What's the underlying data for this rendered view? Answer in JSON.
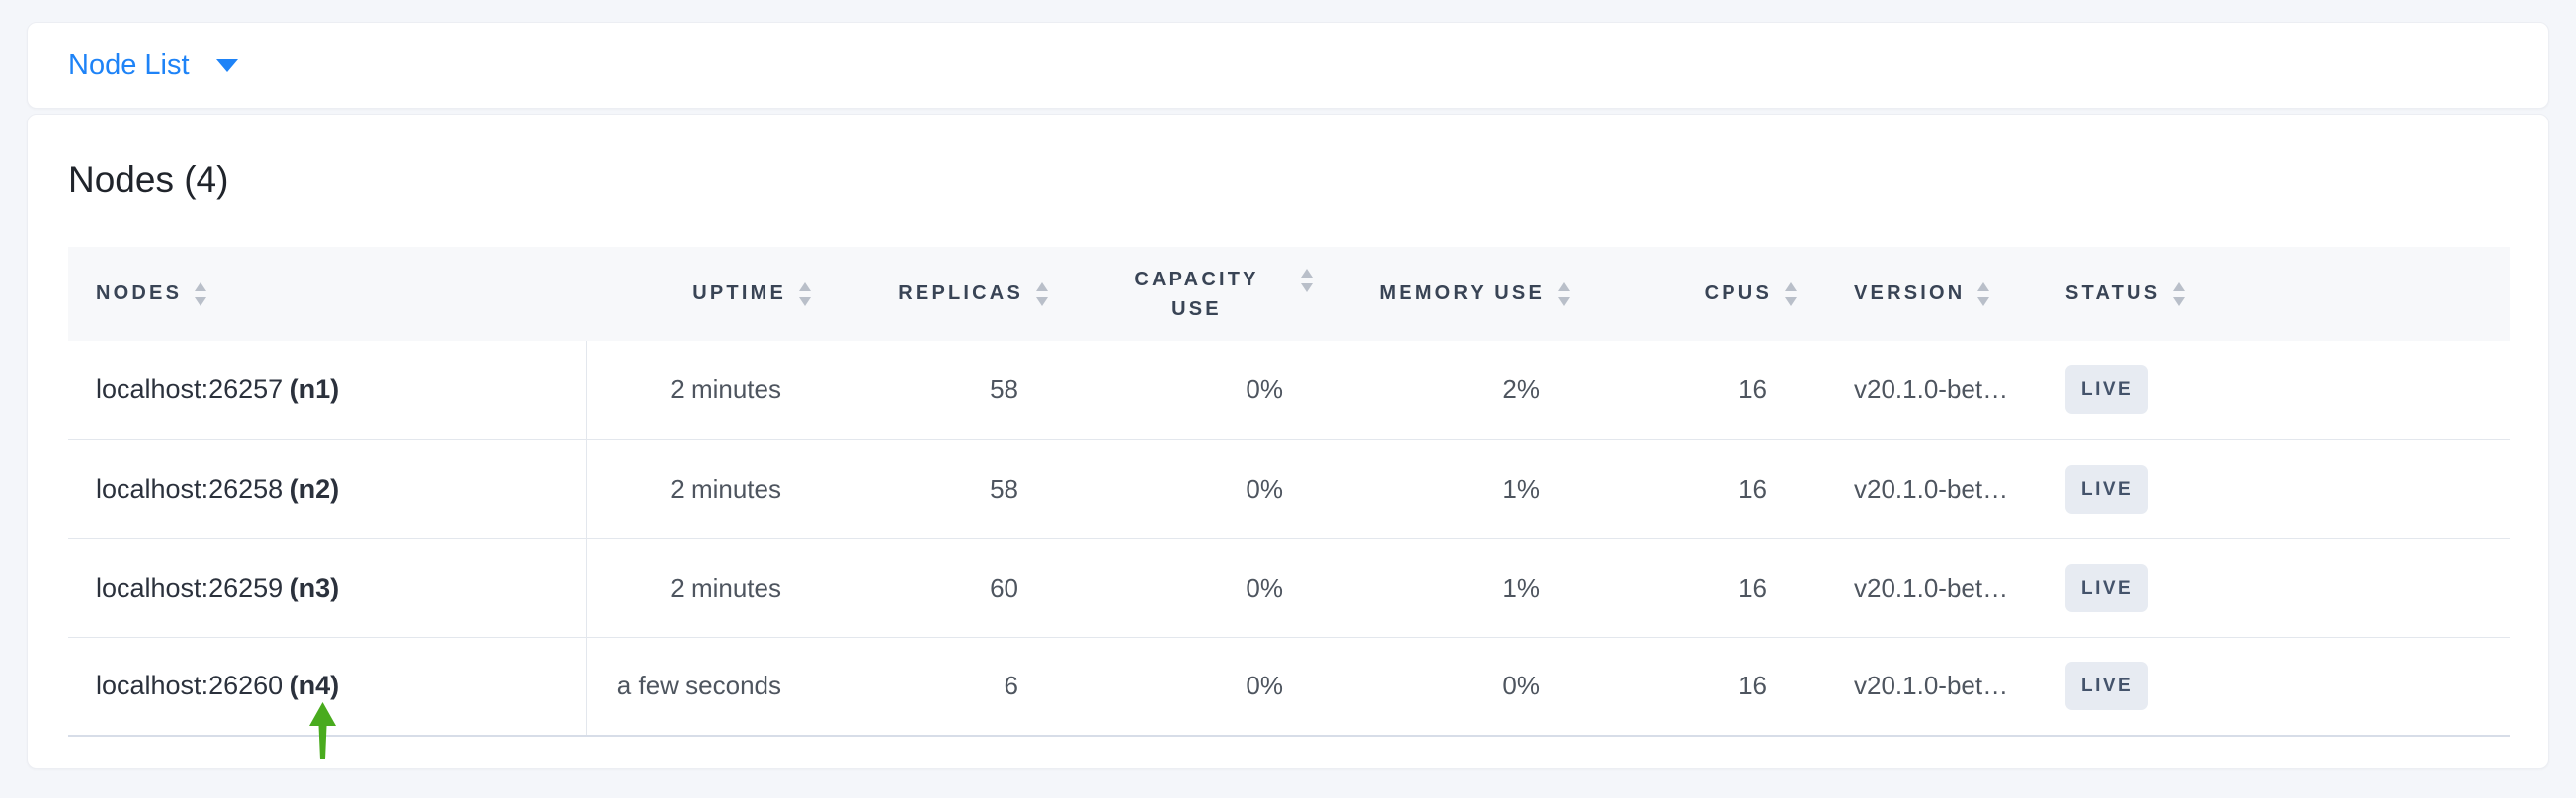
{
  "toolbar": {
    "dropdown_label": "Node List"
  },
  "panel": {
    "title": "Nodes (4)"
  },
  "table": {
    "columns": [
      {
        "key": "nodes",
        "label": "NODES",
        "align": "left",
        "sortable": true
      },
      {
        "key": "uptime",
        "label": "UPTIME",
        "align": "right",
        "sortable": true
      },
      {
        "key": "replicas",
        "label": "REPLICAS",
        "align": "right",
        "sortable": true
      },
      {
        "key": "capacity",
        "label": "CAPACITY USE",
        "align": "right",
        "sortable": true,
        "wrap": true
      },
      {
        "key": "memory",
        "label": "MEMORY USE",
        "align": "right",
        "sortable": true
      },
      {
        "key": "cpus",
        "label": "CPUS",
        "align": "right",
        "sortable": true
      },
      {
        "key": "version",
        "label": "VERSION",
        "align": "left",
        "sortable": true
      },
      {
        "key": "status",
        "label": "STATUS",
        "align": "left",
        "sortable": true
      }
    ],
    "rows": [
      {
        "address": "localhost:26257",
        "node_id": "(n1)",
        "uptime": "2 minutes",
        "replicas": "58",
        "capacity": "0%",
        "memory": "2%",
        "cpus": "16",
        "version": "v20.1.0-bet…",
        "status": "LIVE"
      },
      {
        "address": "localhost:26258",
        "node_id": "(n2)",
        "uptime": "2 minutes",
        "replicas": "58",
        "capacity": "0%",
        "memory": "1%",
        "cpus": "16",
        "version": "v20.1.0-bet…",
        "status": "LIVE"
      },
      {
        "address": "localhost:26259",
        "node_id": "(n3)",
        "uptime": "2 minutes",
        "replicas": "60",
        "capacity": "0%",
        "memory": "1%",
        "cpus": "16",
        "version": "v20.1.0-bet…",
        "status": "LIVE"
      },
      {
        "address": "localhost:26260",
        "node_id": "(n4)",
        "uptime": "a few seconds",
        "replicas": "6",
        "capacity": "0%",
        "memory": "0%",
        "cpus": "16",
        "version": "v20.1.0-bet…",
        "status": "LIVE"
      }
    ]
  },
  "annotation": {
    "type": "arrow-up",
    "points_at": "localhost:26260 (n4)"
  },
  "colors": {
    "accent_blue": "#1e83f7",
    "header_text": "#394455",
    "badge_background": "#e7ebf2",
    "badge_text": "#44536b",
    "annotation_green": "#49ab1e",
    "page_background": "#f4f6fa"
  },
  "icons": {
    "dropdown_caret": "chevron-down",
    "column_sort": "sort-arrows"
  }
}
